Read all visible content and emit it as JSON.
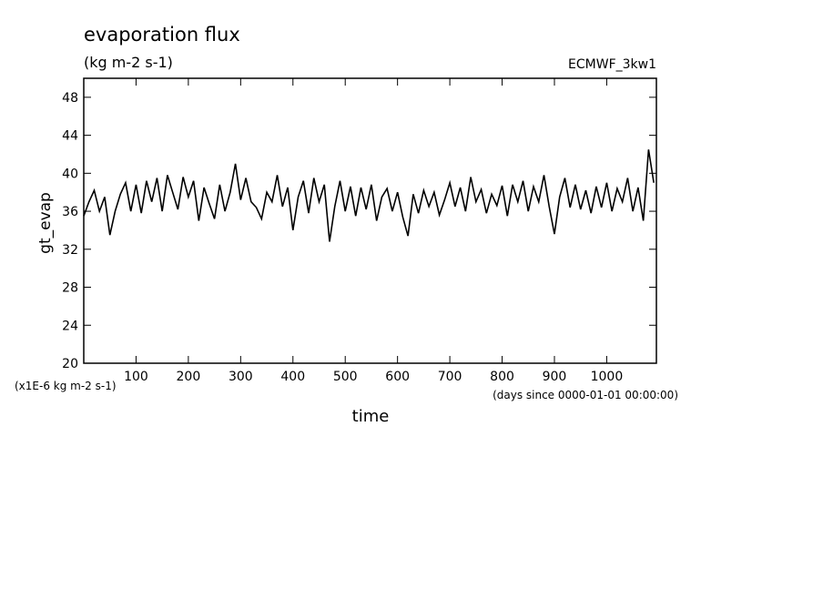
{
  "chart_data": {
    "type": "line",
    "title": "evaporation flux",
    "subtitle": "(kg m-2 s-1)",
    "annotation": "ECMWF_3kw1",
    "y_label": "gt_evap",
    "y_unit": "(x1E-6 kg m-2 s-1)",
    "x_label": "time",
    "x_unit": "(days since 0000-01-01 00:00:00)",
    "xlim": [
      0,
      1095
    ],
    "xticks": [
      100,
      200,
      300,
      400,
      500,
      600,
      700,
      800,
      900,
      1000
    ],
    "ylim": [
      20,
      50
    ],
    "yticks": [
      20,
      24,
      28,
      32,
      36,
      40,
      44,
      48
    ],
    "color": "#000000",
    "x": [
      0,
      10,
      20,
      30,
      40,
      50,
      60,
      70,
      80,
      90,
      100,
      110,
      120,
      130,
      140,
      150,
      160,
      170,
      180,
      190,
      200,
      210,
      220,
      230,
      240,
      250,
      260,
      270,
      280,
      290,
      300,
      310,
      320,
      330,
      340,
      350,
      360,
      370,
      380,
      390,
      400,
      410,
      420,
      430,
      440,
      450,
      460,
      470,
      480,
      490,
      500,
      510,
      520,
      530,
      540,
      550,
      560,
      570,
      580,
      590,
      600,
      610,
      620,
      630,
      640,
      650,
      660,
      670,
      680,
      690,
      700,
      710,
      720,
      730,
      740,
      750,
      760,
      770,
      780,
      790,
      800,
      810,
      820,
      830,
      840,
      850,
      860,
      870,
      880,
      890,
      900,
      910,
      920,
      930,
      940,
      950,
      960,
      970,
      980,
      990,
      1000,
      1010,
      1020,
      1030,
      1040,
      1050,
      1060,
      1070,
      1080,
      1090
    ],
    "values": [
      35.5,
      37,
      38.2,
      36,
      37.5,
      33.5,
      36,
      37.8,
      39,
      36,
      38.8,
      35.8,
      39.2,
      37,
      39.5,
      36,
      39.8,
      38,
      36.2,
      39.6,
      37.5,
      39.2,
      35,
      38.5,
      36.8,
      35.2,
      38.8,
      36,
      38,
      41,
      37.2,
      39.5,
      37,
      36.4,
      35.2,
      38,
      37,
      39.8,
      36.5,
      38.5,
      34,
      37.5,
      39.2,
      35.8,
      39.5,
      37,
      38.8,
      32.8,
      36.5,
      39.2,
      36,
      38.6,
      35.5,
      38.5,
      36.2,
      38.8,
      35,
      37.5,
      38.4,
      36,
      38,
      35.4,
      33.4,
      37.8,
      35.8,
      38.2,
      36.5,
      38,
      35.6,
      37.2,
      39,
      36.5,
      38.5,
      36,
      39.6,
      37,
      38.3,
      35.8,
      37.8,
      36.6,
      38.7,
      35.5,
      38.8,
      37,
      39.2,
      36,
      38.6,
      37,
      39.8,
      36.5,
      33.6,
      37.5,
      39.5,
      36.4,
      38.8,
      36.2,
      38.2,
      35.8,
      38.6,
      36.4,
      39,
      36,
      38.4,
      37,
      39.5,
      36,
      38.5,
      35,
      42.5,
      39
    ]
  }
}
